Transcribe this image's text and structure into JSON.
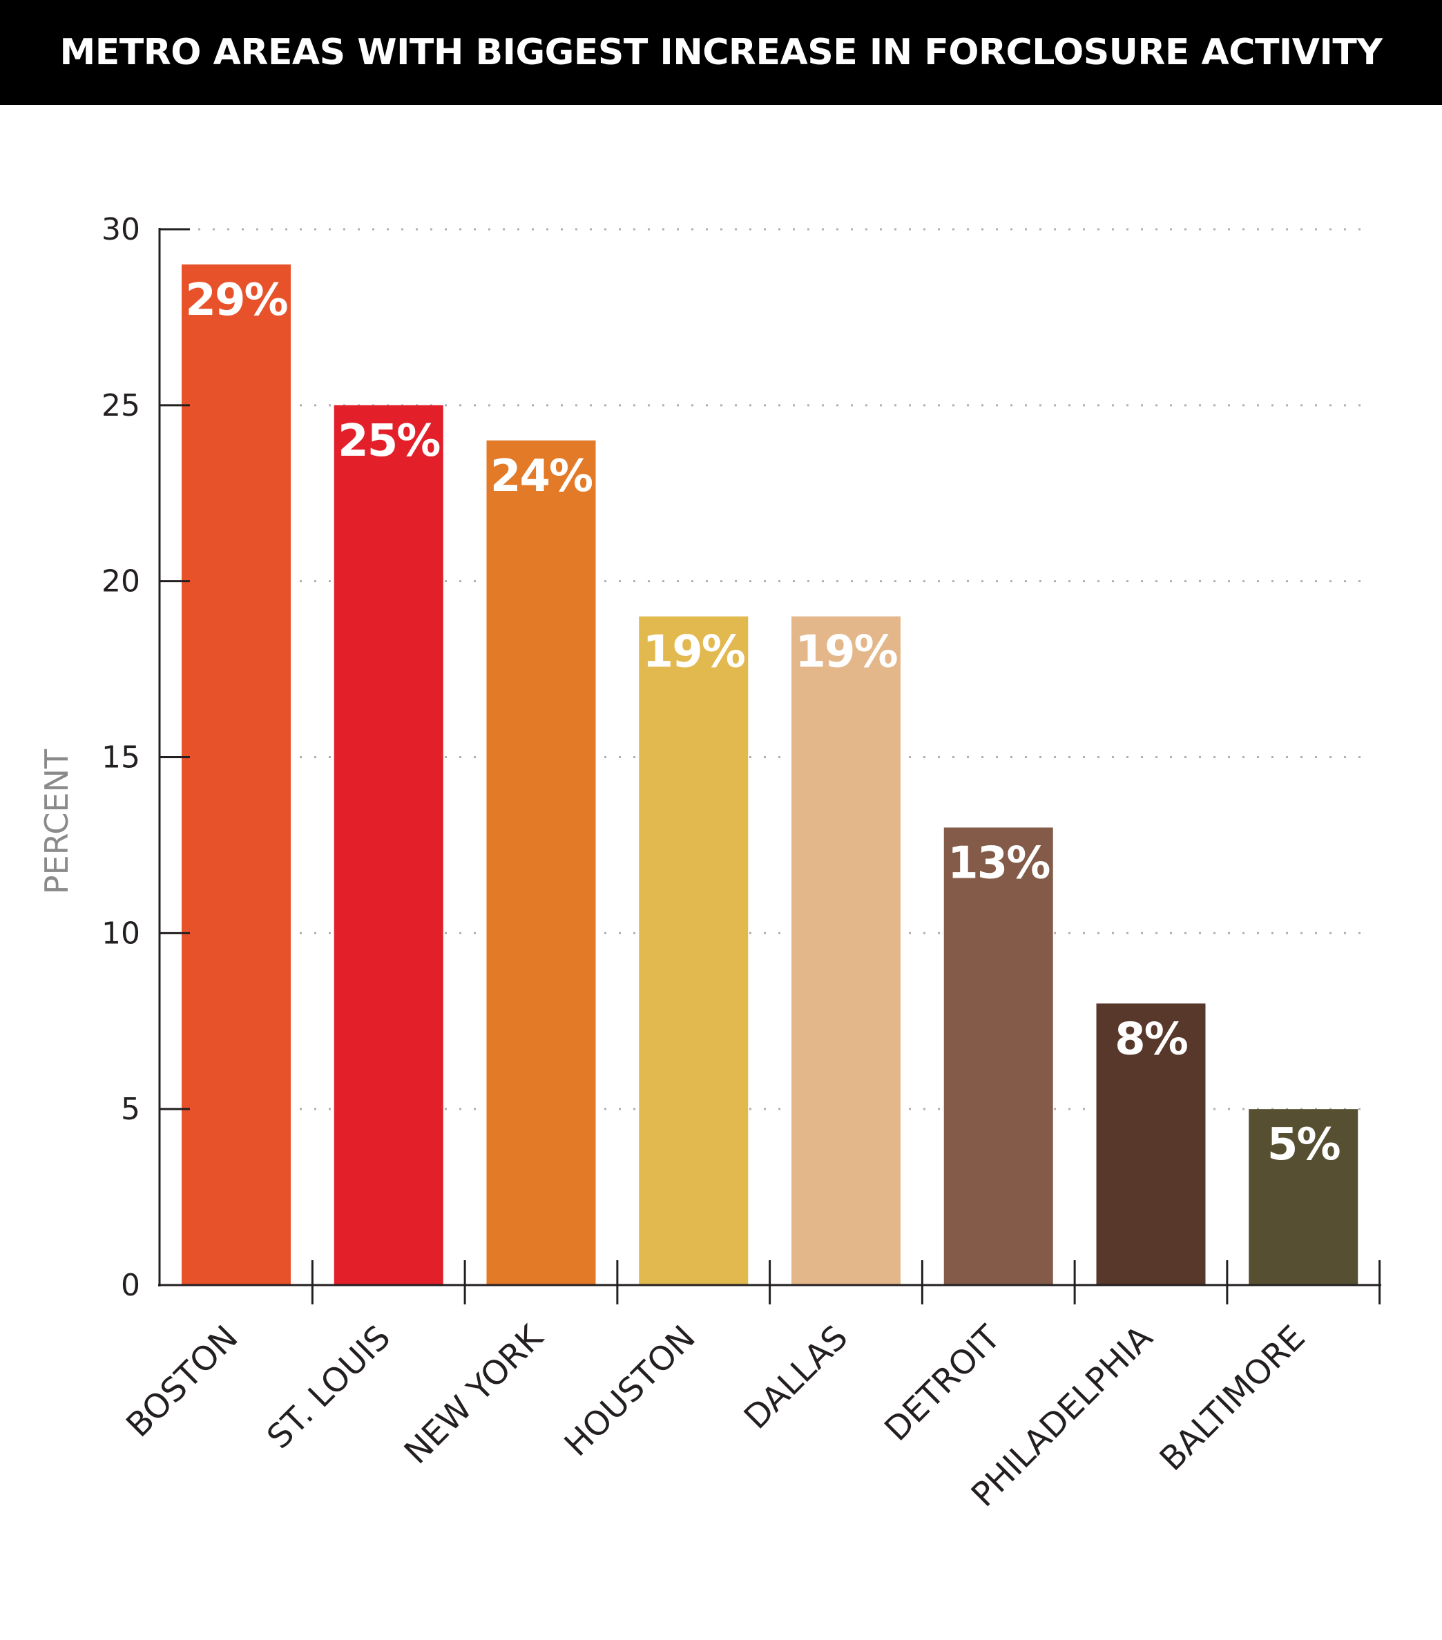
{
  "title": "METRO AREAS WITH BIGGEST INCREASE IN FORCLOSURE ACTIVITY",
  "chart_data": {
    "type": "bar",
    "title": "METRO AREAS WITH BIGGEST INCREASE IN FORCLOSURE ACTIVITY",
    "xlabel": "",
    "ylabel": "PERCENT",
    "ylim": [
      0,
      30
    ],
    "yticks": [
      0,
      5,
      10,
      15,
      20,
      25,
      30
    ],
    "grid": true,
    "categories": [
      "BOSTON",
      "ST. LOUIS",
      "NEW YORK",
      "HOUSTON",
      "DALLAS",
      "DETROIT",
      "PHILADELPHIA",
      "BALTIMORE"
    ],
    "values": [
      29,
      25,
      24,
      19,
      19,
      13,
      8,
      5
    ],
    "value_labels": [
      "29%",
      "25%",
      "24%",
      "19%",
      "19%",
      "13%",
      "8%",
      "5%"
    ],
    "colors": [
      "#e8522a",
      "#e31f2a",
      "#e27a28",
      "#e2b94f",
      "#e3b78a",
      "#835b48",
      "#58382b",
      "#564f31"
    ]
  }
}
